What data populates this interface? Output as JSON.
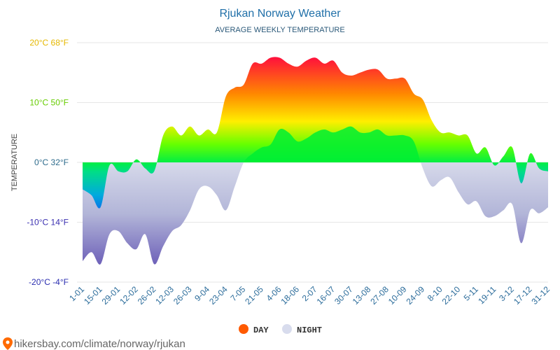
{
  "chart_data": {
    "type": "area",
    "title": "Rjukan Norway Weather",
    "subtitle": "AVERAGE WEEKLY TEMPERATURE",
    "ylabel": "TEMPERATURE",
    "ylim": [
      -20,
      20
    ],
    "y_ticks": [
      {
        "value": 20,
        "label": "20°C 68°F",
        "color": "#e5b800"
      },
      {
        "value": 10,
        "label": "10°C 50°F",
        "color": "#66cc00"
      },
      {
        "value": 0,
        "label": "0°C 32°F",
        "color": "#2d6b8c"
      },
      {
        "value": -10,
        "label": "-10°C 14°F",
        "color": "#3a2fb0"
      },
      {
        "value": -20,
        "label": "-20°C -4°F",
        "color": "#2a2db0"
      }
    ],
    "x_tick_labels": [
      "1-01",
      "15-01",
      "29-01",
      "12-02",
      "26-02",
      "12-03",
      "26-03",
      "9-04",
      "23-04",
      "7-05",
      "21-05",
      "4-06",
      "18-06",
      "2-07",
      "16-07",
      "30-07",
      "13-08",
      "27-08",
      "10-09",
      "24-09",
      "8-10",
      "22-10",
      "5-11",
      "19-11",
      "3-12",
      "17-12",
      "31-12"
    ],
    "series": [
      {
        "name": "DAY",
        "color": "#ff5a00",
        "values": [
          -4.5,
          -5.5,
          -7.5,
          -0.5,
          -1.5,
          -1.5,
          0.5,
          -1,
          -1.5,
          4.5,
          6,
          4.5,
          6,
          4.5,
          5.5,
          5,
          11,
          12.5,
          13,
          16.5,
          16.5,
          17.5,
          17.5,
          16.5,
          16,
          17,
          17.5,
          16.5,
          17,
          15,
          14.5,
          15,
          15.5,
          15.5,
          14,
          14,
          14,
          11.5,
          10.5,
          7,
          5,
          5,
          4.5,
          4.5,
          1.5,
          2.5,
          -0.5,
          1,
          2.5,
          -3.5,
          1.5,
          -1,
          -1.5
        ]
      },
      {
        "name": "NIGHT",
        "color": "#c8cce0",
        "values": [
          -16.5,
          -15,
          -17,
          -12,
          -11.5,
          -13.5,
          -14.5,
          -12,
          -17,
          -14,
          -11.5,
          -10.5,
          -8,
          -4.5,
          -4,
          -5.5,
          -8,
          -4,
          0,
          1.5,
          2.5,
          3,
          5.5,
          5,
          3.5,
          4,
          5,
          5.5,
          5,
          5.5,
          6,
          5,
          5,
          5.5,
          4.5,
          4.5,
          4.5,
          3.5,
          -1,
          -4,
          -3,
          -2.5,
          -5,
          -7,
          -6.5,
          -9,
          -9,
          -8,
          -7,
          -13.5,
          -8,
          -8.5,
          -7.5
        ]
      }
    ],
    "legend": [
      {
        "label": "DAY",
        "color": "#ff5a00"
      },
      {
        "label": "NIGHT",
        "color": "#d8dced"
      }
    ],
    "legend_position": "bottom-center",
    "footer_text": "hikersbay.com/climate/norway/rjukan"
  }
}
